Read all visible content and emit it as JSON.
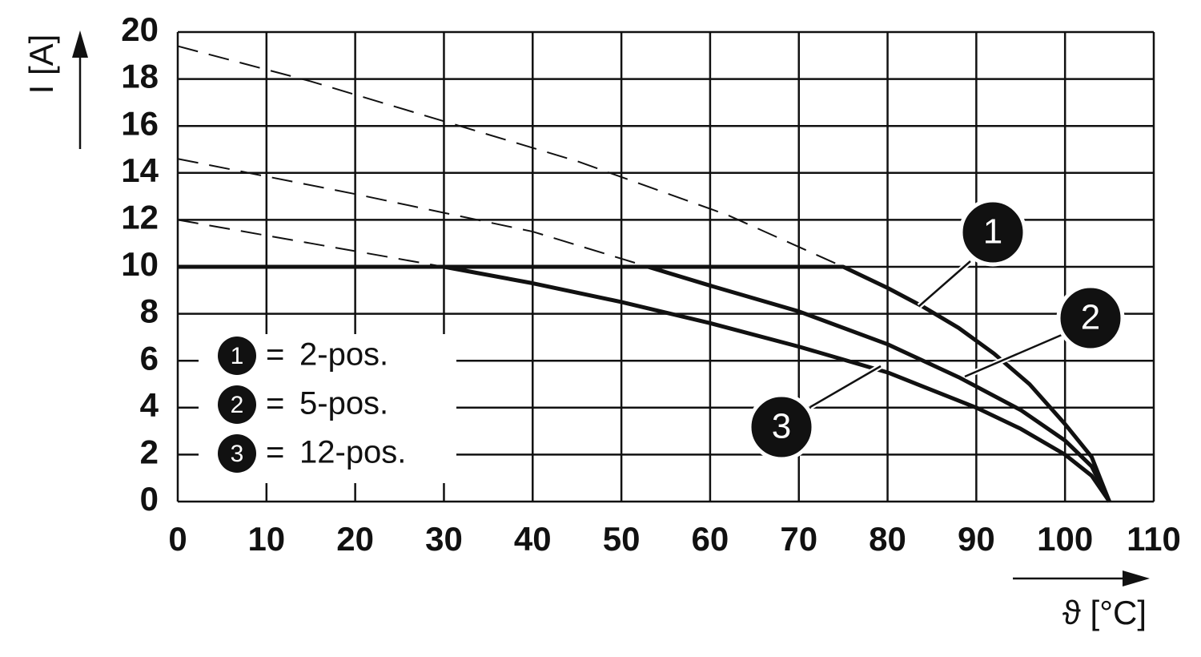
{
  "chart_data": {
    "type": "line",
    "y_label": "I [A]",
    "x_label": "ϑ [°C]",
    "xlim": [
      0,
      110
    ],
    "ylim": [
      0,
      20
    ],
    "xticks": [
      0,
      10,
      20,
      30,
      40,
      50,
      60,
      70,
      80,
      90,
      100,
      110
    ],
    "yticks": [
      0,
      2,
      4,
      6,
      8,
      10,
      12,
      14,
      16,
      18,
      20
    ],
    "grid": true,
    "legend_separator": "=",
    "series": [
      {
        "name": "2-pos.",
        "marker": "1",
        "color": "#111111",
        "x": [
          0,
          75,
          80,
          84,
          88,
          92,
          96,
          100,
          103,
          105
        ],
        "values": [
          10,
          10,
          9.1,
          8.3,
          7.4,
          6.3,
          5,
          3.3,
          1.9,
          0
        ],
        "dashed_x": [
          0,
          15,
          30,
          45,
          62,
          75
        ],
        "dashed_values": [
          19.4,
          17.9,
          16.2,
          14.5,
          12.2,
          10
        ]
      },
      {
        "name": "5-pos.",
        "marker": "2",
        "color": "#111111",
        "x": [
          0,
          53,
          60,
          70,
          80,
          88,
          95,
          100,
          103,
          105
        ],
        "values": [
          10,
          10,
          9.2,
          8.1,
          6.7,
          5.3,
          3.9,
          2.6,
          1.5,
          0
        ],
        "dashed_x": [
          0,
          20,
          40,
          53
        ],
        "dashed_values": [
          14.6,
          13.1,
          11.5,
          10
        ]
      },
      {
        "name": "12-pos.",
        "marker": "3",
        "color": "#111111",
        "x": [
          0,
          30,
          40,
          50,
          60,
          70,
          80,
          90,
          95,
          100,
          103,
          105
        ],
        "values": [
          10,
          10,
          9.3,
          8.5,
          7.6,
          6.6,
          5.5,
          4,
          3.1,
          2,
          1.1,
          0
        ],
        "dashed_x": [
          0,
          15,
          30
        ],
        "dashed_values": [
          12,
          11,
          10
        ]
      }
    ]
  }
}
